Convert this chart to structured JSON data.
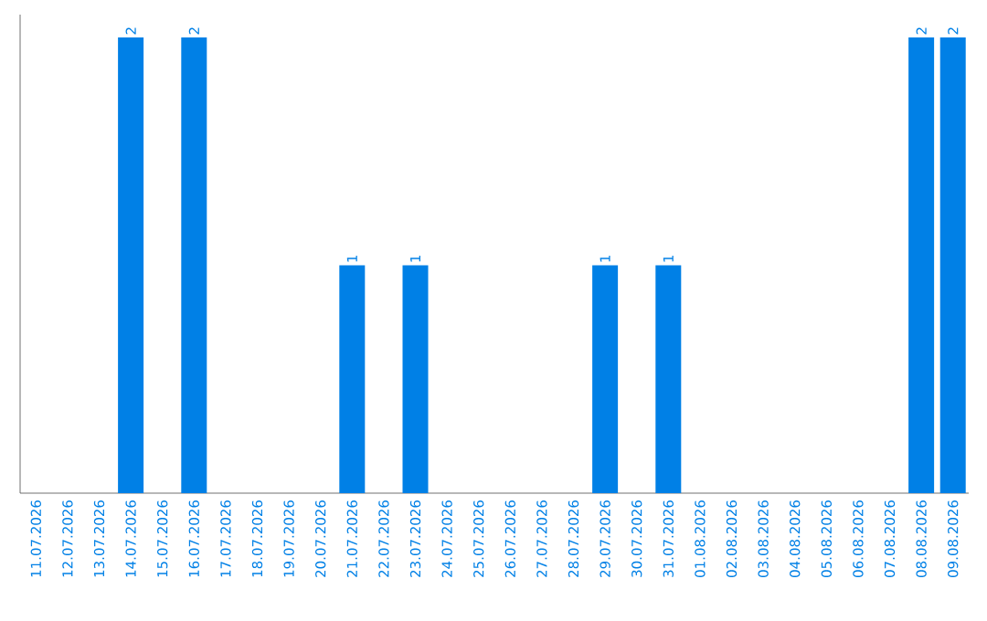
{
  "chart_data": {
    "type": "bar",
    "color": "#0080e6",
    "categories": [
      "11.07.2026",
      "12.07.2026",
      "13.07.2026",
      "14.07.2026",
      "15.07.2026",
      "16.07.2026",
      "17.07.2026",
      "18.07.2026",
      "19.07.2026",
      "20.07.2026",
      "21.07.2026",
      "22.07.2026",
      "23.07.2026",
      "24.07.2026",
      "25.07.2026",
      "26.07.2026",
      "27.07.2026",
      "28.07.2026",
      "29.07.2026",
      "30.07.2026",
      "31.07.2026",
      "01.08.2026",
      "02.08.2026",
      "03.08.2026",
      "04.08.2026",
      "05.08.2026",
      "06.08.2026",
      "07.08.2026",
      "08.08.2026",
      "09.08.2026"
    ],
    "values": [
      0,
      0,
      0,
      2,
      0,
      2,
      0,
      0,
      0,
      0,
      1,
      0,
      1,
      0,
      0,
      0,
      0,
      0,
      1,
      0,
      1,
      0,
      0,
      0,
      0,
      0,
      0,
      0,
      2,
      2
    ],
    "value_labels": [
      null,
      null,
      null,
      "2",
      null,
      "2",
      null,
      null,
      null,
      null,
      "1",
      null,
      "1",
      null,
      null,
      null,
      null,
      null,
      "1",
      null,
      "1",
      null,
      null,
      null,
      null,
      null,
      null,
      null,
      "2",
      "2"
    ]
  }
}
